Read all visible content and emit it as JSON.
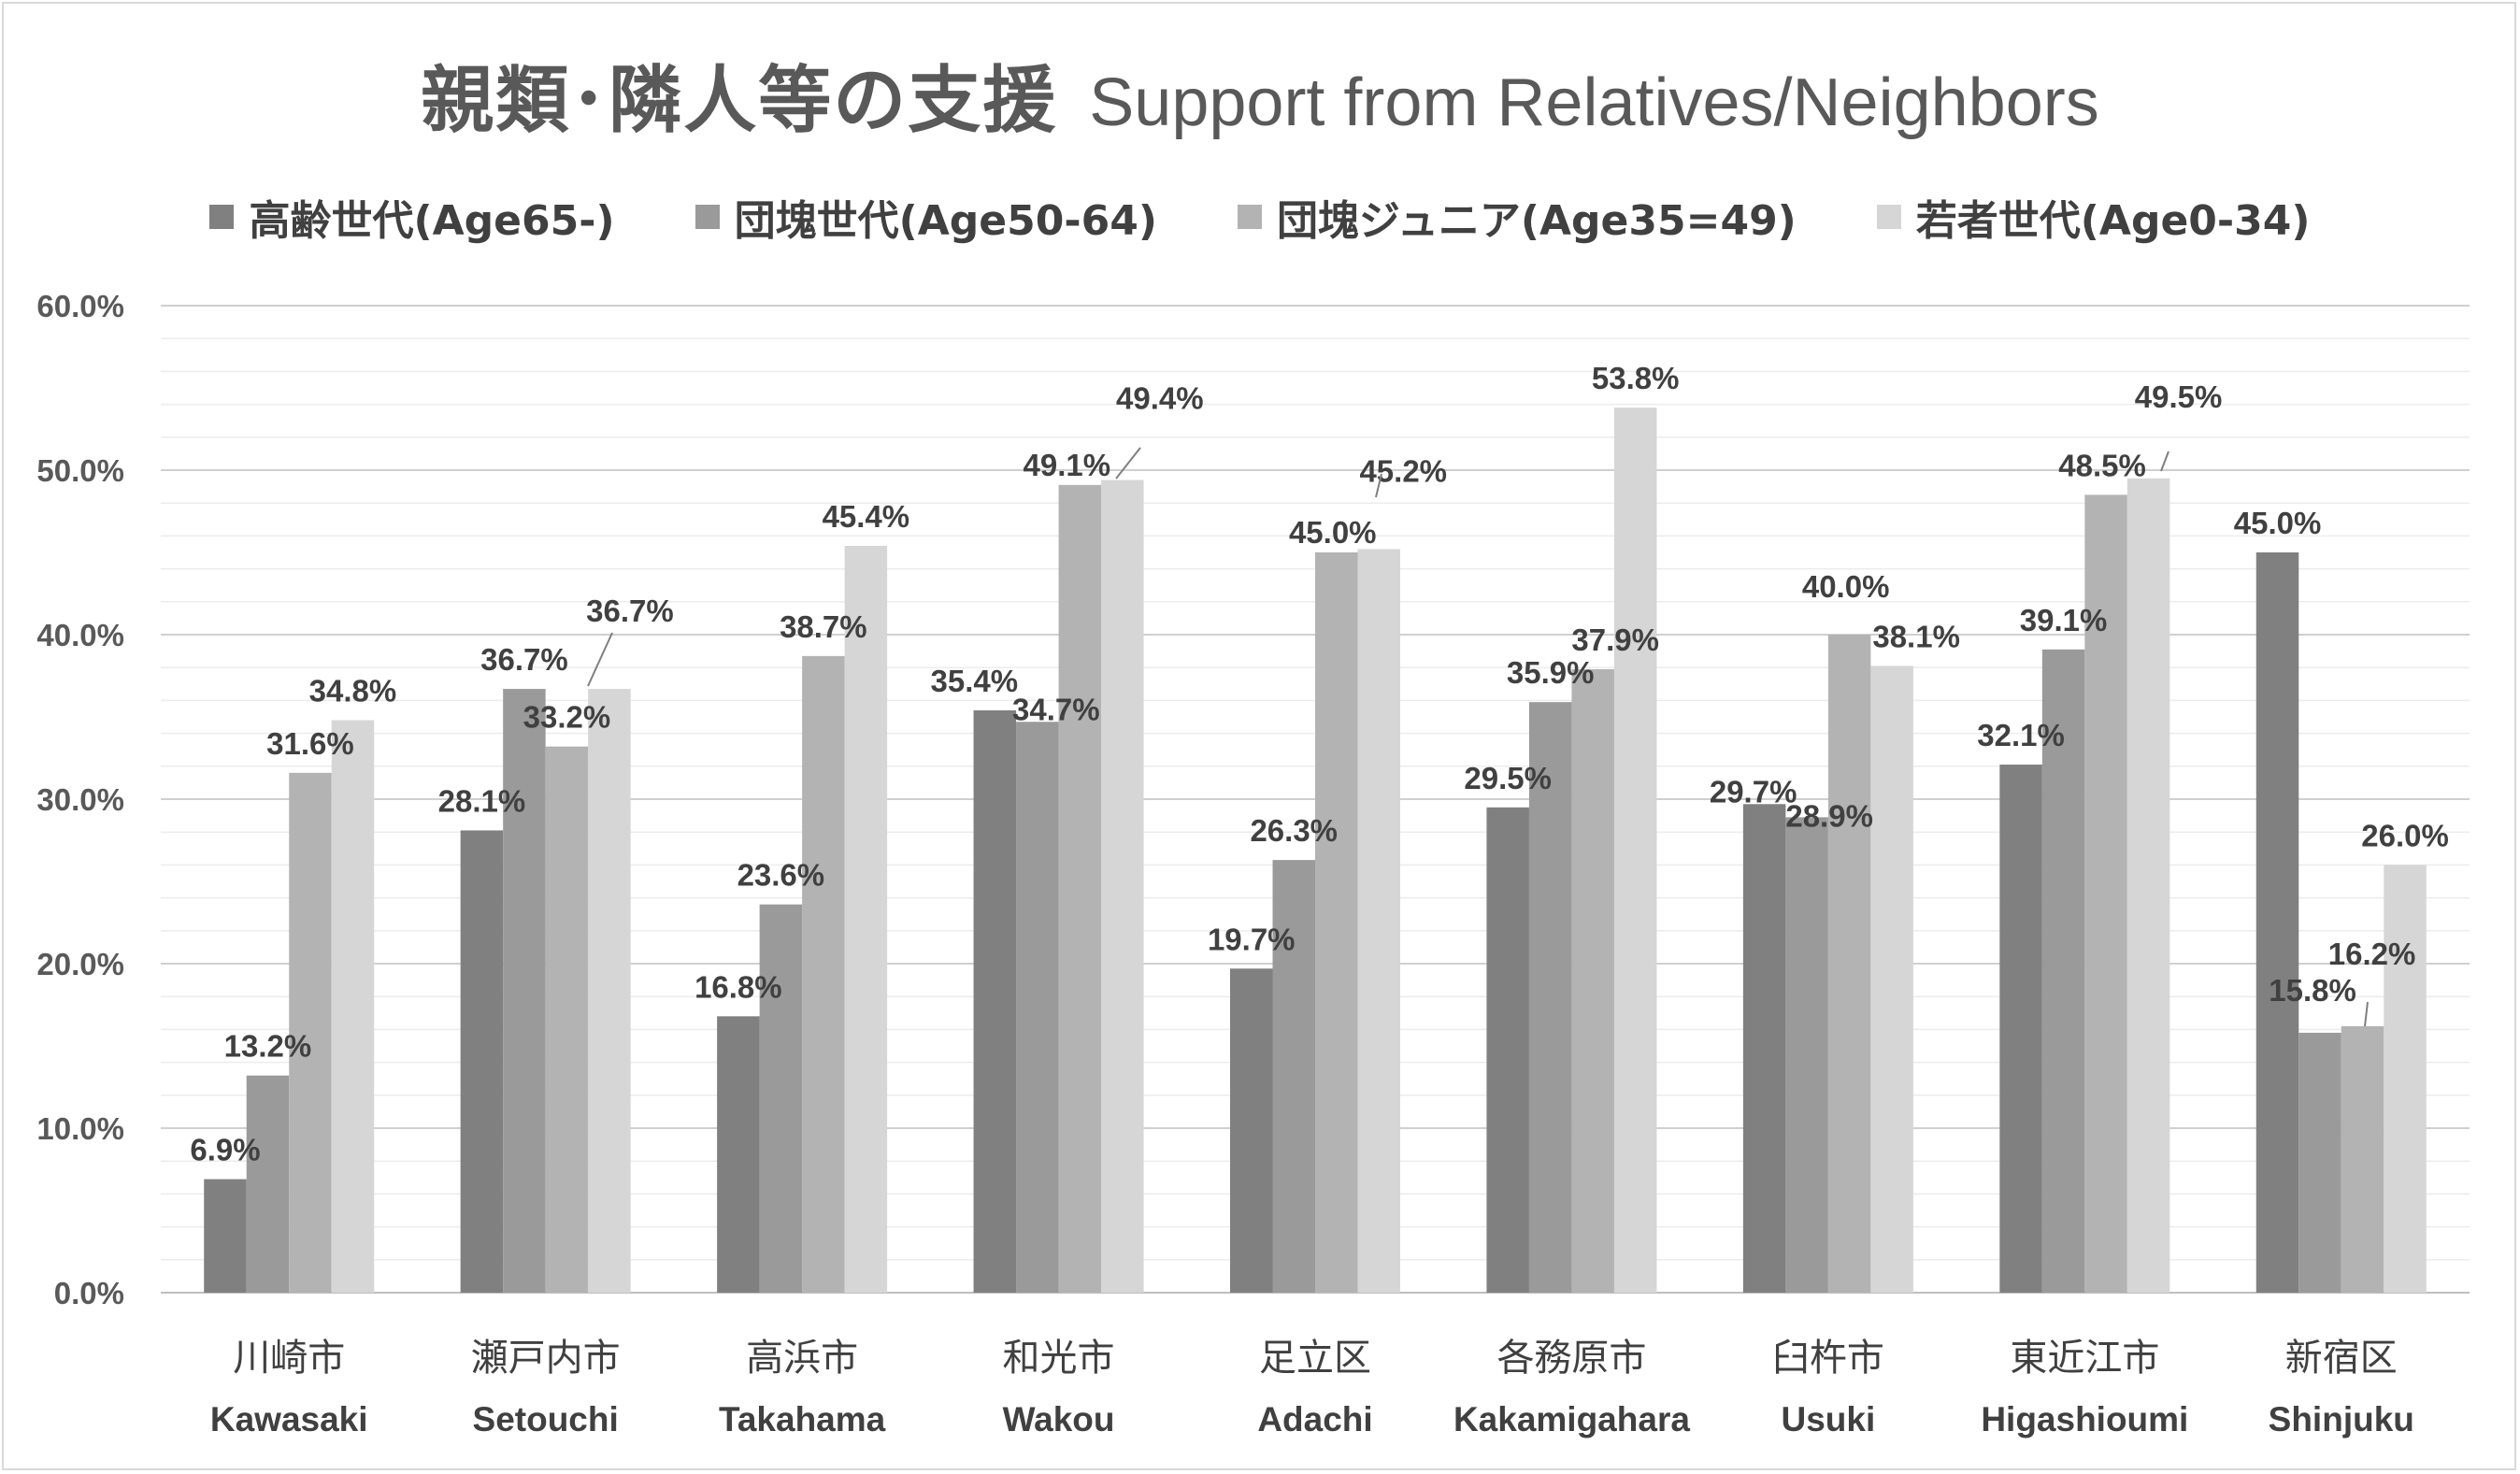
{
  "chart_data": {
    "type": "bar",
    "title": "親類･隣人等の支援",
    "subtitle": "Support from Relatives/Neighbors",
    "categories": [
      "川崎市",
      "瀬戸内市",
      "高浜市",
      "和光市",
      "足立区",
      "各務原市",
      "臼杵市",
      "東近江市",
      "新宿区"
    ],
    "categories_en": [
      "Kawasaki",
      "Setouchi",
      "Takahama",
      "Wakou",
      "Adachi",
      "Kakamigahara",
      "Usuki",
      "Higashioumi",
      "Shinjuku"
    ],
    "series": [
      {
        "name": "高齢世代(Age65-)",
        "color": "#808080",
        "values": [
          6.9,
          28.1,
          16.8,
          35.4,
          19.7,
          29.5,
          29.7,
          32.1,
          45.0
        ]
      },
      {
        "name": "団塊世代(Age50-64)",
        "color": "#9a9a9a",
        "values": [
          13.2,
          36.7,
          23.6,
          34.7,
          26.3,
          35.9,
          28.9,
          39.1,
          15.8
        ]
      },
      {
        "name": "団塊ジュニア(Age35=49)",
        "color": "#b3b3b3",
        "values": [
          31.6,
          33.2,
          38.7,
          49.1,
          45.0,
          37.9,
          40.0,
          48.5,
          16.2
        ]
      },
      {
        "name": "若者世代(Age0-34)",
        "color": "#d6d6d6",
        "values": [
          34.8,
          36.7,
          45.4,
          49.4,
          45.2,
          53.8,
          38.1,
          49.5,
          26.0
        ]
      }
    ],
    "data_labels": [
      [
        "6.9%",
        "13.2%",
        "31.6%",
        "34.8%"
      ],
      [
        "28.1%",
        "36.7%",
        "33.2%",
        "36.7%"
      ],
      [
        "16.8%",
        "23.6%",
        "38.7%",
        "45.4%"
      ],
      [
        "35.4%",
        "34.7%",
        "49.1%",
        "49.4%"
      ],
      [
        "19.7%",
        "26.3%",
        "45.0%",
        "45.2%"
      ],
      [
        "29.5%",
        "35.9%",
        "37.9%",
        "53.8%"
      ],
      [
        "29.7%",
        "28.9%",
        "40.0%",
        "38.1%"
      ],
      [
        "32.1%",
        "39.1%",
        "48.5%",
        "49.5%"
      ],
      [
        "45.0%",
        "15.8%",
        "16.2%",
        "26.0%"
      ]
    ],
    "y_ticks": [
      "0.0%",
      "10.0%",
      "20.0%",
      "30.0%",
      "40.0%",
      "50.0%",
      "60.0%"
    ],
    "ylim": [
      0,
      60
    ],
    "grid": true,
    "legend": "top"
  }
}
